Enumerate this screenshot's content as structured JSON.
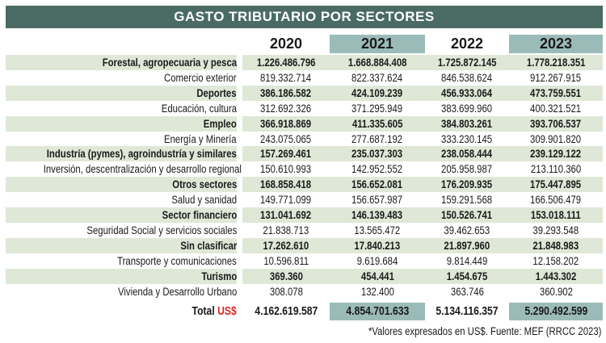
{
  "title": "GASTO TRIBUTARIO POR SECTORES",
  "years": [
    "2020",
    "2021",
    "2022",
    "2023"
  ],
  "highlight_color": "#9bbbb9",
  "title_color": "#4a6b63",
  "row_band_color": "#dfe8d7",
  "rows": [
    {
      "label": "Forestal, agropecuaria y pesca",
      "values": [
        "1.226.486.796",
        "1.668.884.408",
        "1.725.872.145",
        "1.778.218.351"
      ]
    },
    {
      "label": "Comercio exterior",
      "values": [
        "819.332.714",
        "822.337.624",
        "846.538.624",
        "912.267.915"
      ]
    },
    {
      "label": "Deportes",
      "values": [
        "386.186.582",
        "424.109.239",
        "456.933.064",
        "473.759.551"
      ]
    },
    {
      "label": "Educación, cultura",
      "values": [
        "312.692.326",
        "371.295.949",
        "383.699.960",
        "400.321.521"
      ]
    },
    {
      "label": "Empleo",
      "values": [
        "366.918.869",
        "411.335.605",
        "384.803.261",
        "393.706.537"
      ]
    },
    {
      "label": "Energía y Minería",
      "values": [
        "243.075.065",
        "277.687.192",
        "333.230.145",
        "309.901.820"
      ]
    },
    {
      "label": "Industría (pymes), agroindustría y similares",
      "values": [
        "157.269.461",
        "235.037.303",
        "238.058.444",
        "239.129.122"
      ]
    },
    {
      "label": "Inversión, descentralización y desarrollo regional",
      "values": [
        "150.610.993",
        "142.952.552",
        "205.958.987",
        "213.110.360"
      ]
    },
    {
      "label": "Otros sectores",
      "values": [
        "168.858.418",
        "156.652.081",
        "176.209.935",
        "175.447.895"
      ]
    },
    {
      "label": "Salud y sanidad",
      "values": [
        "149.771.099",
        "156.657.987",
        "159.291.568",
        "166.506.479"
      ]
    },
    {
      "label": "Sector financiero",
      "values": [
        "131.041.692",
        "146.139.483",
        "150.526.741",
        "153.018.111"
      ]
    },
    {
      "label": "Seguridad Social y servicios sociales",
      "values": [
        "21.838.713",
        "13.565.472",
        "39.462.653",
        "39.293.548"
      ]
    },
    {
      "label": "Sin clasificar",
      "values": [
        "17.262.610",
        "17.840.213",
        "21.897.960",
        "21.848.983"
      ]
    },
    {
      "label": "Transporte y comunicaciones",
      "values": [
        "10.596.811",
        "9.619.684",
        "9.814.449",
        "12.158.202"
      ]
    },
    {
      "label": "Turismo",
      "values": [
        "369.360",
        "454.441",
        "1.454.675",
        "1.443.302"
      ]
    },
    {
      "label": "Vivienda y Desarrollo Urbano",
      "values": [
        "308.078",
        "132.400",
        "363.746",
        "360.902"
      ]
    }
  ],
  "total": {
    "label": "Total",
    "currency": "US$",
    "values": [
      "4.162.619.587",
      "4.854.701.633",
      "5.134.116.357",
      "5.290.492.599"
    ]
  },
  "footnote": "*Valores expresados en US$. Fuente: MEF (RRCC 2023)"
}
